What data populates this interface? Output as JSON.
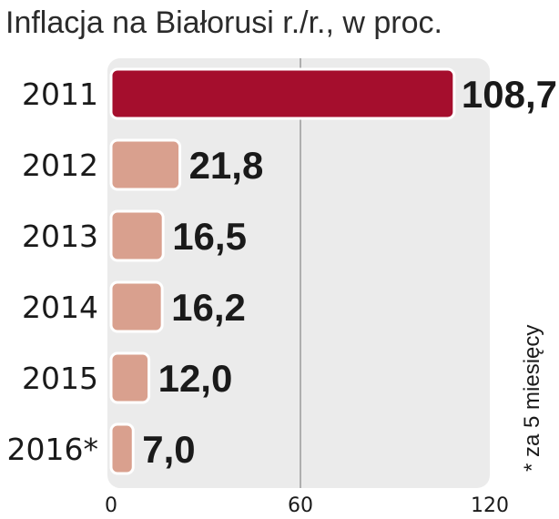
{
  "chart_data": {
    "type": "bar",
    "orientation": "horizontal",
    "title": "Inflacja na Białorusi r./r., w proc.",
    "categories": [
      "2011",
      "2012",
      "2013",
      "2014",
      "2015",
      "2016*"
    ],
    "values": [
      108.7,
      21.8,
      16.5,
      16.2,
      12.0,
      7.0
    ],
    "value_labels": [
      "108,7",
      "21,8",
      "16,5",
      "16,2",
      "12,0",
      "7,0"
    ],
    "xlim": [
      0,
      120
    ],
    "x_ticks": [
      "0",
      "60",
      "120"
    ],
    "x_tick_values": [
      0,
      60,
      120
    ],
    "footnote": "* za 5 miesięcy",
    "colors": {
      "highlight": "#a50e2d",
      "bar": "#d9a08e",
      "plot_background": "#ebebeb",
      "bar_border": "#ffffff",
      "gridline": "#9a9a9a"
    },
    "highlight_index": 0
  }
}
